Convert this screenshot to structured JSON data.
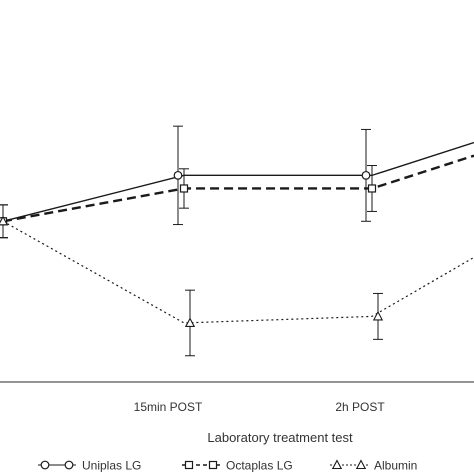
{
  "chart_data": {
    "type": "line",
    "title": "",
    "xlabel": "Laboratory treatment test",
    "ylabel": "",
    "categories": [
      "",
      "15min POST",
      "2h POST",
      ""
    ],
    "grid": false,
    "legend_placement": "bottom",
    "series": [
      {
        "name": "Uniplas LG",
        "style": "solid",
        "marker": "circle",
        "color": "#1a1a1a",
        "values": [
          0.49,
          0.63,
          0.63,
          0.73
        ],
        "error": [
          0.05,
          0.15,
          0.14,
          null
        ]
      },
      {
        "name": "Octaplas LG",
        "style": "dashed",
        "marker": "square",
        "color": "#1a1a1a",
        "values": [
          0.49,
          0.59,
          0.59,
          0.69
        ],
        "error": [
          0.05,
          0.06,
          0.07,
          null
        ]
      },
      {
        "name": "Albumin",
        "style": "dotted",
        "marker": "triangle",
        "color": "#1a1a1a",
        "values": [
          0.49,
          0.18,
          0.2,
          0.38
        ],
        "error": [
          0.05,
          0.1,
          0.07,
          null
        ]
      }
    ]
  }
}
